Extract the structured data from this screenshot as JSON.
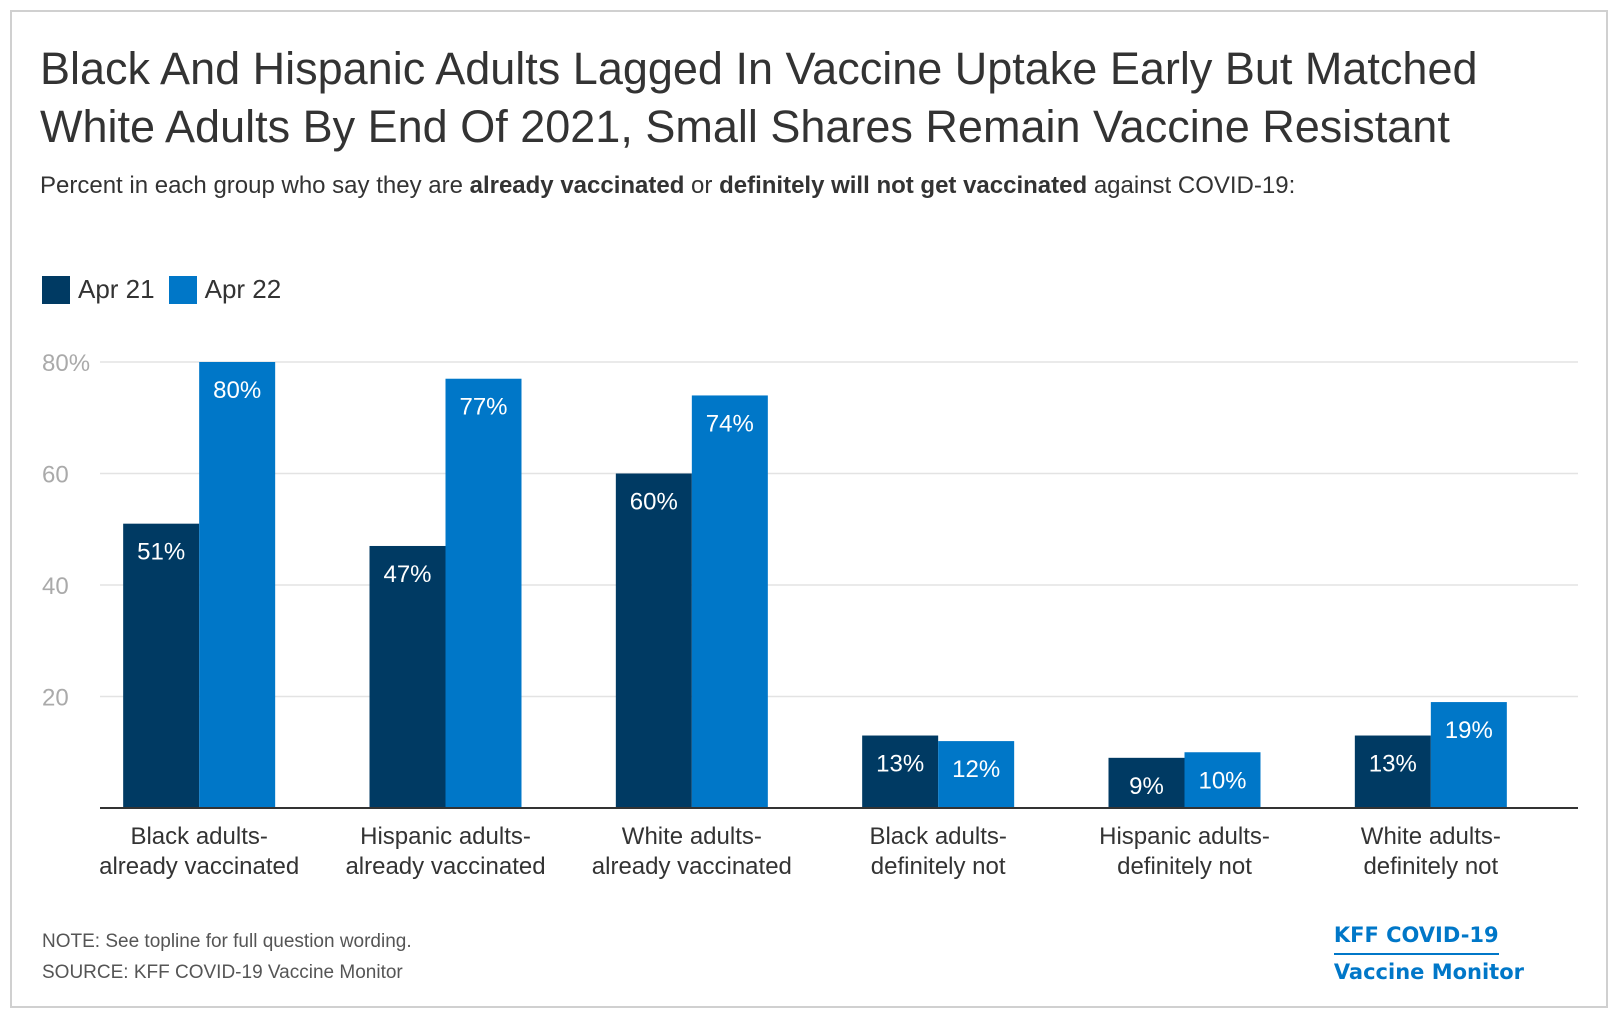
{
  "header": {
    "title": "Black And Hispanic Adults Lagged In Vaccine Uptake Early But Matched White Adults By End Of 2021, Small Shares Remain Vaccine Resistant",
    "subtitle_pre": "Percent in each group who say they are ",
    "subtitle_b1": "already vaccinated",
    "subtitle_mid": " or ",
    "subtitle_b2": "definitely will not get vaccinated",
    "subtitle_post": " against COVID-19:"
  },
  "footer": {
    "note": "NOTE: See topline for full question wording.",
    "source": "SOURCE: KFF COVID-19 Vaccine Monitor",
    "brand_line1": "KFF COVID-19",
    "brand_line2": "Vaccine Monitor"
  },
  "colors": {
    "apr21": "#003a63",
    "apr22": "#0077c8",
    "grid": "#e3e3e3",
    "axis": "#333333",
    "tick": "#aaaaaa"
  },
  "chart_data": {
    "type": "bar",
    "categories": [
      [
        "Black adults-",
        "already vaccinated"
      ],
      [
        "Hispanic adults-",
        "already vaccinated"
      ],
      [
        "White adults-",
        "already vaccinated"
      ],
      [
        "Black adults-",
        "definitely not"
      ],
      [
        "Hispanic adults-",
        "definitely not"
      ],
      [
        "White adults-",
        "definitely not"
      ]
    ],
    "series": [
      {
        "name": "Apr 21",
        "values": [
          51,
          47,
          60,
          13,
          9,
          13
        ],
        "labels": [
          "51%",
          "47%",
          "60%",
          "13%",
          "9%",
          "13%"
        ]
      },
      {
        "name": "Apr 22",
        "values": [
          80,
          77,
          74,
          12,
          10,
          19
        ],
        "labels": [
          "80%",
          "77%",
          "74%",
          "12%",
          "10%",
          "19%"
        ]
      }
    ],
    "yticks": [
      {
        "value": 20,
        "label": "20"
      },
      {
        "value": 40,
        "label": "40"
      },
      {
        "value": 60,
        "label": "60"
      },
      {
        "value": 80,
        "label": "80%"
      }
    ],
    "ylim": [
      0,
      80
    ],
    "grid": true,
    "legend_position": "top-left"
  }
}
